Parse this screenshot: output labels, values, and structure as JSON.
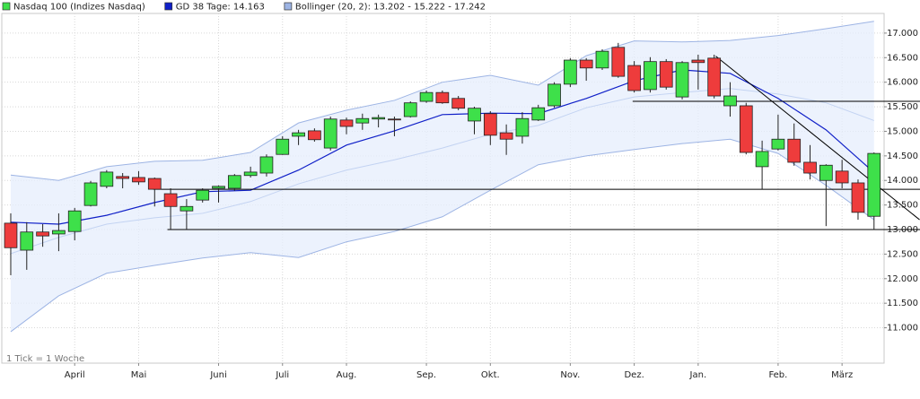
{
  "chart_data": {
    "type": "candlestick",
    "footnote": "1 Tick = 1 Woche",
    "categories": [
      null,
      null,
      null,
      null,
      "April",
      null,
      null,
      null,
      "Mai",
      null,
      null,
      null,
      null,
      "Juni",
      null,
      null,
      null,
      "Juli",
      null,
      null,
      null,
      "Aug.",
      null,
      null,
      null,
      null,
      "Sep.",
      null,
      null,
      null,
      "Okt.",
      null,
      null,
      null,
      null,
      "Nov.",
      null,
      null,
      null,
      "Dez.",
      null,
      null,
      null,
      "Jan.",
      null,
      null,
      null,
      null,
      "Feb.",
      null,
      null,
      null,
      "März",
      null,
      null
    ],
    "xlim": [
      -0.56,
      54.63
    ],
    "ylim": [
      10.28,
      17.4
    ],
    "yticks": [
      {
        "value": 11,
        "label": "11.000"
      },
      {
        "value": 11.5,
        "label": "11.500"
      },
      {
        "value": 12,
        "label": "12.000"
      },
      {
        "value": 12.5,
        "label": "12.500"
      },
      {
        "value": 13,
        "label": "13.000"
      },
      {
        "value": 13.5,
        "label": "13.500"
      },
      {
        "value": 14,
        "label": "14.000"
      },
      {
        "value": 14.5,
        "label": "14.500"
      },
      {
        "value": 15,
        "label": "15.000"
      },
      {
        "value": 15.5,
        "label": "15.500"
      },
      {
        "value": 16,
        "label": "16.000"
      },
      {
        "value": 16.5,
        "label": "16.500"
      },
      {
        "value": 17,
        "label": "17.000"
      }
    ],
    "grid": true,
    "series": [
      {
        "name": "Nasdaq 100 (Indizes Nasdaq)",
        "color": "#3ee04a",
        "down_color": "#ee3c3c",
        "open": [
          13.13,
          12.58,
          12.95,
          12.91,
          12.96,
          13.49,
          13.88,
          14.08,
          14.06,
          14.04,
          13.73,
          13.38,
          13.6,
          13.84,
          13.84,
          14.1,
          14.15,
          14.53,
          14.9,
          15.01,
          14.66,
          15.23,
          15.17,
          15.25,
          15.25,
          15.3,
          15.61,
          15.79,
          15.67,
          15.21,
          15.36,
          14.97,
          14.9,
          15.23,
          15.52,
          15.96,
          16.45,
          16.29,
          16.71,
          16.34,
          15.85,
          16.42,
          15.7,
          16.45,
          16.49,
          15.52,
          15.52,
          14.28,
          14.64,
          14.84,
          14.37,
          14.0,
          14.19,
          13.95,
          13.27
        ],
        "high": [
          13.33,
          13.15,
          13.11,
          13.33,
          13.44,
          13.99,
          14.21,
          14.15,
          14.19,
          14.06,
          13.84,
          13.62,
          13.84,
          13.9,
          14.13,
          14.28,
          14.53,
          14.9,
          15.03,
          15.06,
          15.3,
          15.28,
          15.36,
          15.34,
          15.3,
          15.61,
          15.83,
          15.83,
          15.72,
          15.5,
          15.41,
          15.14,
          15.39,
          15.54,
          16.0,
          16.49,
          16.49,
          16.67,
          16.8,
          16.43,
          16.51,
          16.47,
          16.43,
          16.56,
          16.56,
          16.0,
          15.58,
          14.81,
          15.34,
          15.16,
          14.72,
          14.33,
          14.42,
          14.02,
          14.57
        ],
        "low": [
          12.07,
          12.18,
          12.65,
          12.56,
          12.78,
          13.47,
          13.84,
          13.84,
          13.91,
          13.47,
          13.0,
          13.0,
          13.55,
          13.55,
          13.79,
          14.06,
          14.08,
          14.52,
          14.72,
          14.79,
          14.61,
          14.94,
          15.03,
          15.08,
          14.9,
          15.28,
          15.58,
          15.56,
          15.43,
          14.94,
          14.72,
          14.52,
          14.75,
          15.21,
          15.48,
          15.9,
          16.03,
          16.25,
          16.09,
          15.79,
          15.79,
          15.85,
          15.65,
          15.85,
          15.67,
          15.3,
          14.53,
          13.82,
          14.61,
          14.3,
          14.02,
          13.07,
          13.84,
          13.2,
          13.0
        ],
        "close": [
          12.63,
          12.95,
          12.87,
          12.98,
          13.38,
          13.95,
          14.17,
          14.04,
          13.97,
          13.82,
          13.47,
          13.47,
          13.8,
          13.88,
          14.1,
          14.17,
          14.48,
          14.84,
          14.97,
          14.83,
          15.25,
          15.1,
          15.26,
          15.28,
          15.24,
          15.58,
          15.79,
          15.58,
          15.47,
          15.47,
          14.92,
          14.84,
          15.26,
          15.48,
          15.96,
          16.45,
          16.29,
          16.63,
          16.12,
          15.83,
          16.42,
          15.9,
          16.4,
          16.4,
          15.72,
          15.72,
          14.57,
          14.59,
          14.84,
          14.37,
          14.15,
          14.31,
          13.95,
          13.35,
          14.55
        ]
      }
    ],
    "overlays": [
      {
        "name": "GD 38 Tage: 14.163",
        "color": "#1020c8",
        "x": [
          0,
          3,
          6,
          9,
          12,
          15,
          18,
          21,
          24,
          27,
          30,
          33,
          36,
          39,
          42,
          45,
          48,
          51,
          54
        ],
        "values": [
          13.15,
          13.11,
          13.29,
          13.55,
          13.77,
          13.8,
          14.21,
          14.72,
          15.01,
          15.34,
          15.37,
          15.36,
          15.67,
          16.03,
          16.25,
          16.18,
          15.67,
          15.03,
          14.16
        ]
      },
      {
        "name": "Bollinger (20, 2): 13.202 - 15.222 - 17.242",
        "color": "#9db4e4",
        "x": [
          0,
          3,
          6,
          9,
          12,
          15,
          18,
          21,
          24,
          27,
          30,
          33,
          36,
          39,
          42,
          45,
          48,
          51,
          54
        ],
        "upper": [
          14.11,
          14.0,
          14.28,
          14.39,
          14.41,
          14.57,
          15.17,
          15.43,
          15.63,
          16.0,
          16.14,
          15.94,
          16.54,
          16.84,
          16.82,
          16.85,
          16.95,
          17.09,
          17.24
        ],
        "middle": [
          12.51,
          12.84,
          13.11,
          13.24,
          13.33,
          13.57,
          13.93,
          14.21,
          14.42,
          14.66,
          14.94,
          15.12,
          15.48,
          15.7,
          15.79,
          15.87,
          15.76,
          15.58,
          15.22
        ],
        "lower": [
          10.92,
          11.65,
          12.11,
          12.27,
          12.42,
          12.53,
          12.43,
          12.75,
          12.96,
          13.26,
          13.8,
          14.32,
          14.5,
          14.63,
          14.75,
          14.84,
          14.55,
          13.9,
          13.2
        ]
      }
    ],
    "hlines": [
      {
        "value": 15.61,
        "from": 38.9
      },
      {
        "value": 13.82,
        "from": 8.9
      },
      {
        "value": 13.0,
        "from": 9.8
      }
    ],
    "trendline": {
      "x": [
        44.1,
        56.85
      ],
      "values": [
        16.53,
        13.2
      ]
    }
  }
}
